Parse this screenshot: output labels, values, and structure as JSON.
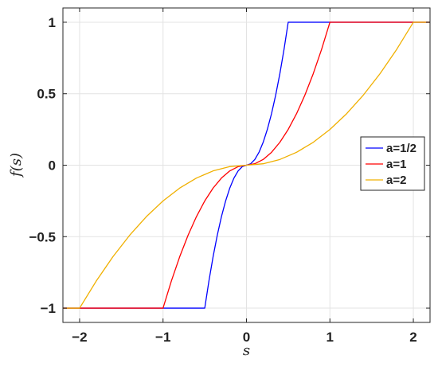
{
  "chart_data": {
    "type": "line",
    "xlabel": "s",
    "ylabel": "f(s)",
    "xlim": [
      -2.2,
      2.2
    ],
    "ylim": [
      -1.1,
      1.1
    ],
    "xticks": [
      -2,
      -1,
      0,
      1,
      2
    ],
    "xtick_labels": [
      "−2",
      "−1",
      "0",
      "1",
      "2"
    ],
    "yticks": [
      -1,
      -0.5,
      0,
      0.5,
      1
    ],
    "ytick_labels": [
      "−1",
      "−0.5",
      "0",
      "0.5",
      "1"
    ],
    "grid": true,
    "legend_position": "right",
    "series": [
      {
        "name": "a=1/2",
        "color": "#0000ff",
        "x": [
          -2.2,
          -0.5,
          -0.45,
          -0.4,
          -0.35,
          -0.3,
          -0.25,
          -0.2,
          -0.15,
          -0.1,
          -0.05,
          0,
          0.05,
          0.1,
          0.15,
          0.2,
          0.25,
          0.3,
          0.35,
          0.4,
          0.45,
          0.5,
          2.2
        ],
        "y": [
          -1,
          -1,
          -0.81,
          -0.64,
          -0.49,
          -0.36,
          -0.25,
          -0.16,
          -0.09,
          -0.04,
          -0.01,
          0,
          0.01,
          0.04,
          0.09,
          0.16,
          0.25,
          0.36,
          0.49,
          0.64,
          0.81,
          1,
          1
        ]
      },
      {
        "name": "a=1",
        "color": "#ff0000",
        "x": [
          -2.2,
          -1,
          -0.9,
          -0.8,
          -0.7,
          -0.6,
          -0.5,
          -0.4,
          -0.3,
          -0.2,
          -0.1,
          0,
          0.1,
          0.2,
          0.3,
          0.4,
          0.5,
          0.6,
          0.7,
          0.8,
          0.9,
          1,
          2.2
        ],
        "y": [
          -1,
          -1,
          -0.81,
          -0.64,
          -0.49,
          -0.36,
          -0.25,
          -0.16,
          -0.09,
          -0.04,
          -0.01,
          0,
          0.01,
          0.04,
          0.09,
          0.16,
          0.25,
          0.36,
          0.49,
          0.64,
          0.81,
          1,
          1
        ]
      },
      {
        "name": "a=2",
        "color": "#f0b000",
        "x": [
          -2.2,
          -2,
          -1.8,
          -1.6,
          -1.4,
          -1.2,
          -1,
          -0.8,
          -0.6,
          -0.4,
          -0.2,
          0,
          0.2,
          0.4,
          0.6,
          0.8,
          1,
          1.2,
          1.4,
          1.6,
          1.8,
          2,
          2.2
        ],
        "y": [
          -1,
          -1,
          -0.81,
          -0.64,
          -0.49,
          -0.36,
          -0.25,
          -0.16,
          -0.09,
          -0.04,
          -0.01,
          0,
          0.01,
          0.04,
          0.09,
          0.16,
          0.25,
          0.36,
          0.49,
          0.64,
          0.81,
          1,
          1
        ]
      }
    ]
  }
}
